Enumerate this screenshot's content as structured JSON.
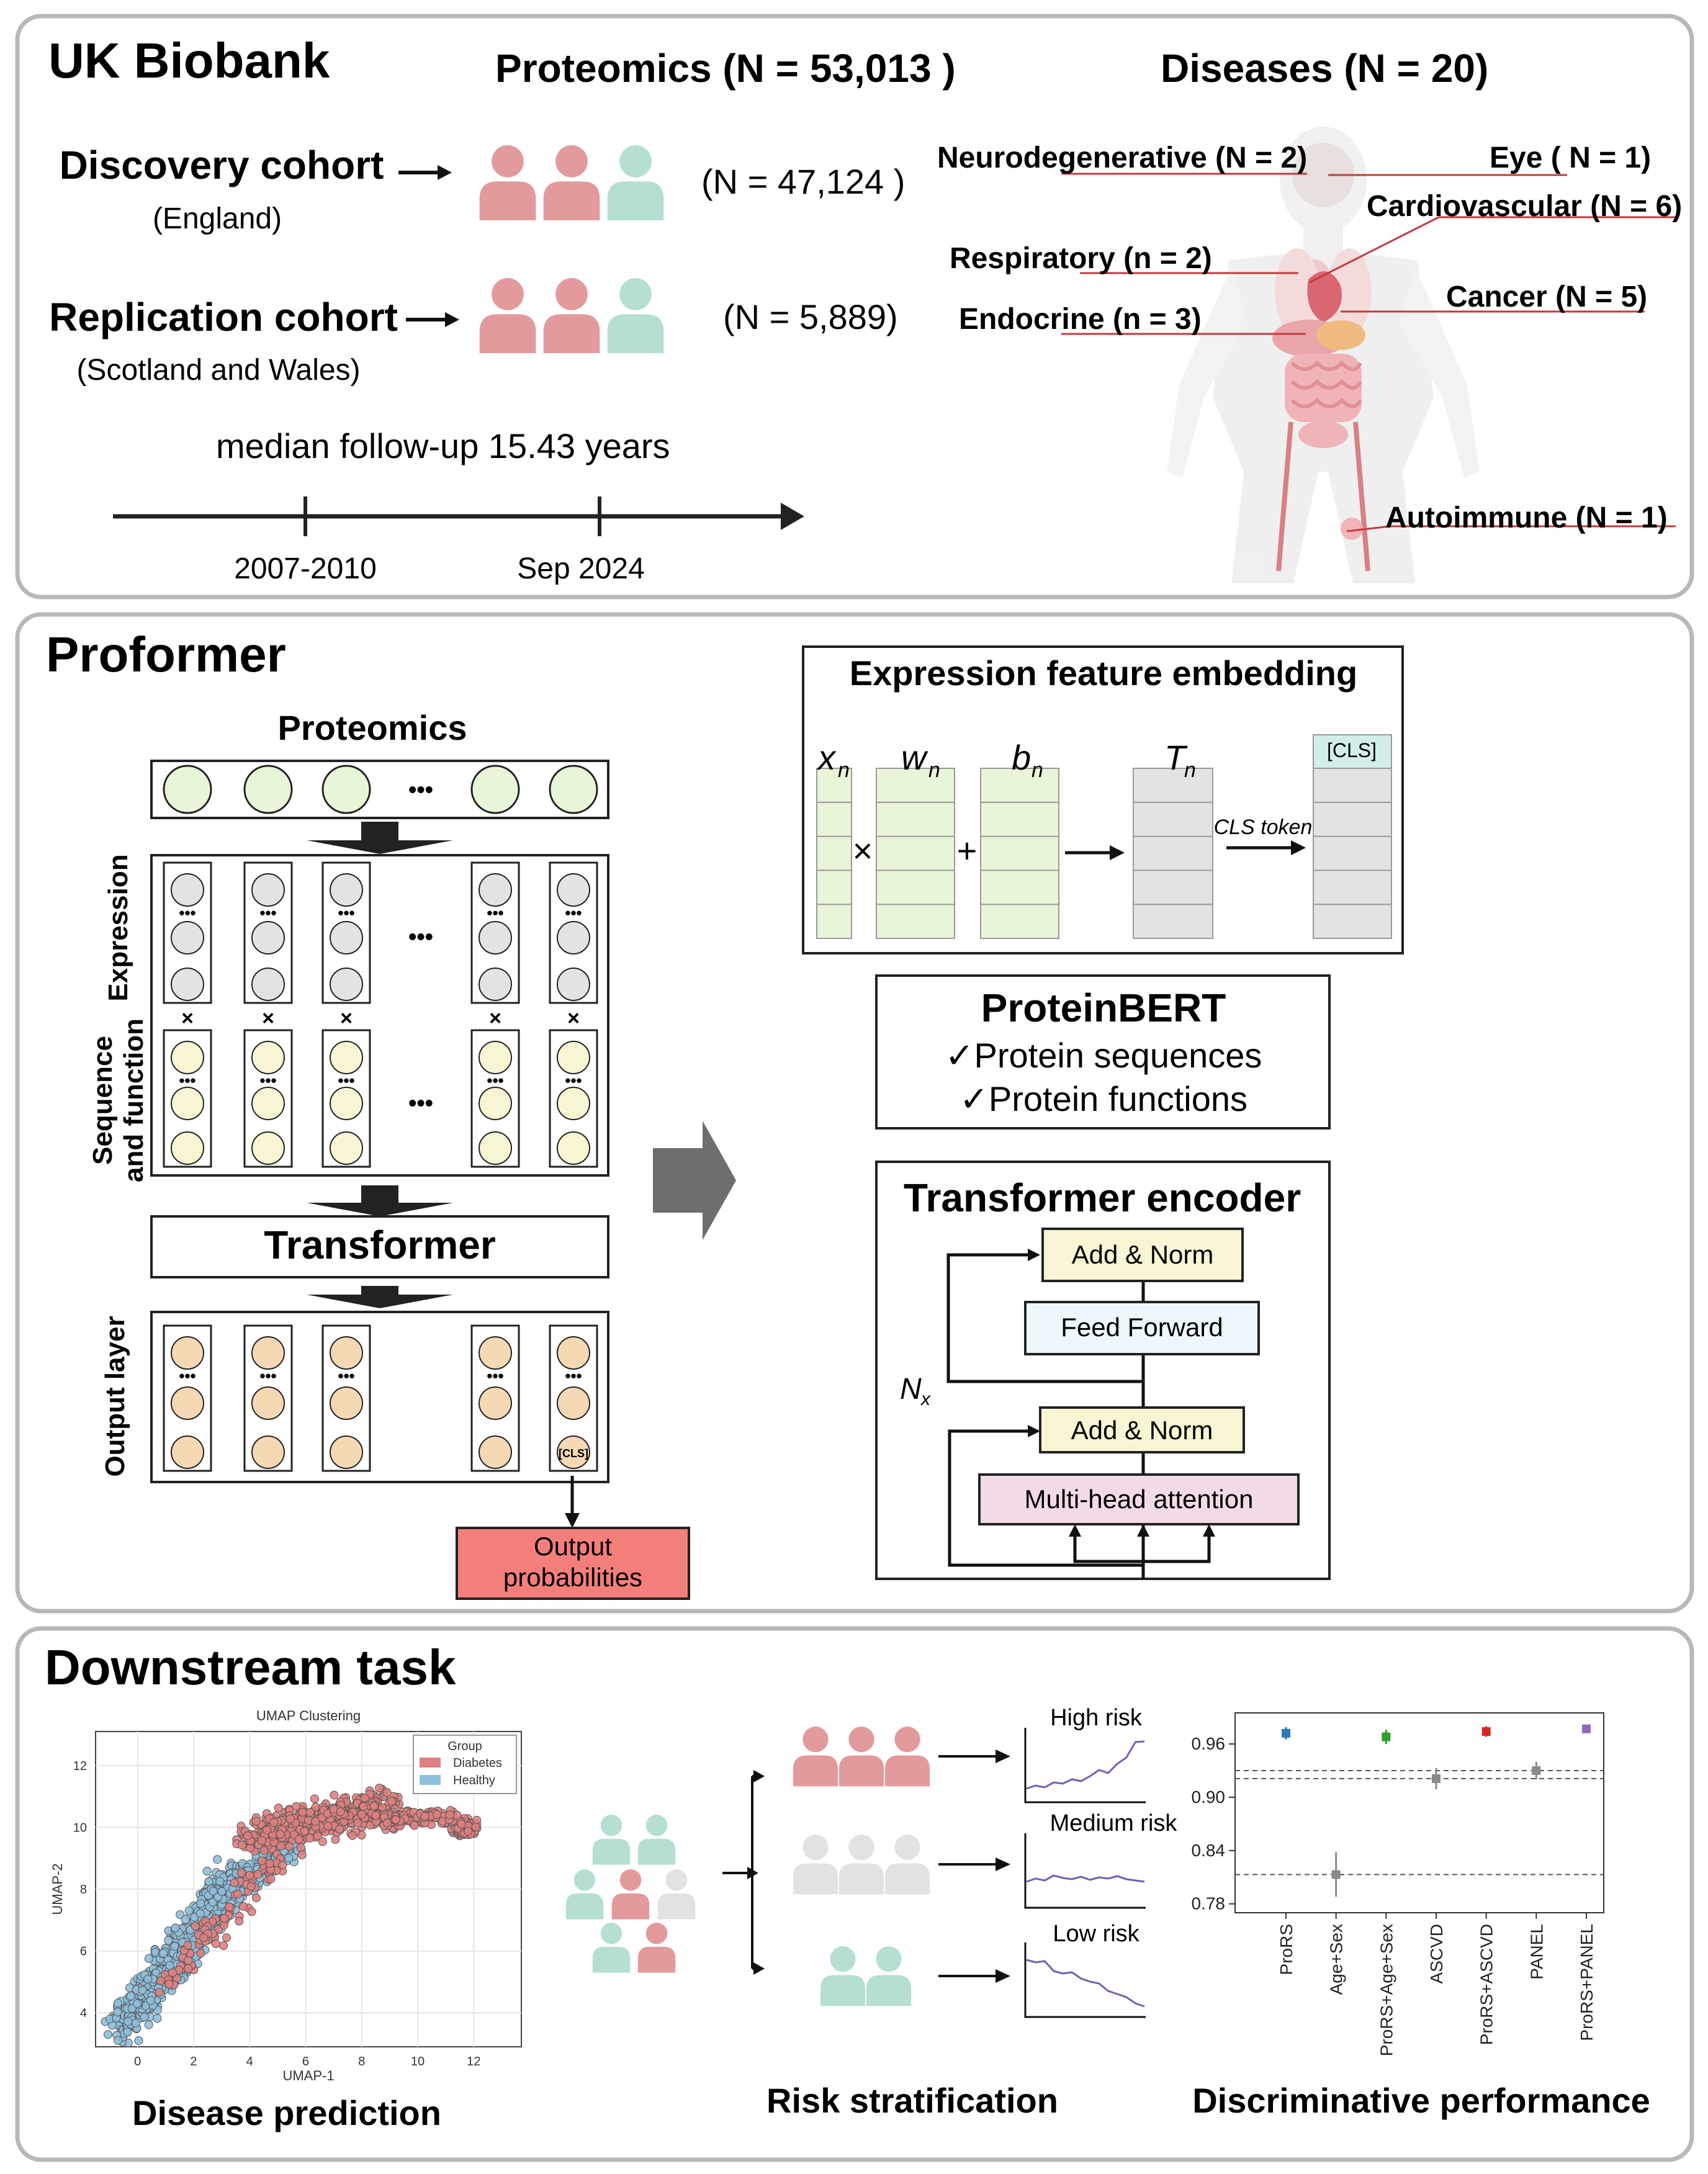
{
  "colors": {
    "person_pink": "#e39a9c",
    "person_teal": "#b5dfd3",
    "person_grey": "#e2e2e2",
    "green_fill": "#e8f5d8",
    "grey_fill": "#e3e3e3",
    "yellow_fill": "#f7f5d3",
    "orange_fill": "#f5d8b4",
    "output_red": "#f47f7a",
    "attention_pink": "#f2dbe6",
    "feedforward_blue": "#eef8fc",
    "cls_teal": "#d3eeea",
    "panel_border": "#b8b8b8",
    "line_purple": "#6a64b2",
    "diabetes_red": "#df7f7f",
    "healthy_blue": "#8fbfdc"
  },
  "biobank": {
    "title": "UK Biobank",
    "proteomics": "Proteomics  (N =  53,013 )",
    "diseases": "Diseases (N = 20)",
    "discovery": {
      "label": "Discovery cohort",
      "region": "(England)",
      "n": "(N = 47,124 )",
      "people": [
        "pink",
        "pink",
        "teal"
      ]
    },
    "replication": {
      "label": "Replication cohort",
      "region": "(Scotland and Wales)",
      "n": "(N = 5,889)",
      "people": [
        "pink",
        "pink",
        "teal"
      ]
    },
    "followup": "median follow-up  15.43 years",
    "timeline": {
      "start": "2007-2010",
      "end": "Sep 2024"
    },
    "disease_labels": [
      {
        "text": "Neurodegenerative (N = 2)"
      },
      {
        "text": "Eye ( N = 1)"
      },
      {
        "text": "Cardiovascular (N = 6)"
      },
      {
        "text": "Respiratory (n = 2)"
      },
      {
        "text": "Cancer (N = 5)"
      },
      {
        "text": "Endocrine (n = 3)"
      },
      {
        "text": "Autoimmune (N = 1)"
      }
    ]
  },
  "proformer": {
    "title": "Proformer",
    "proteomics_label": "Proteomics",
    "ellipsis": "•••",
    "vdots": "•••",
    "times": "×",
    "expression_label": "Expression",
    "sequence_label_1": "Sequence",
    "sequence_label_2": "and function",
    "transformer_label": "Transformer",
    "output_layer_label": "Output layer",
    "cls_small": "[CLS]",
    "output_prob_1": "Output",
    "output_prob_2": "probabilities",
    "embedding": {
      "title": "Expression feature embedding",
      "x": "x",
      "x_sub": "n",
      "w": "w",
      "w_sub": "n",
      "b": "b",
      "b_sub": "n",
      "t": "T",
      "t_sub": "n",
      "op_times": "×",
      "op_plus": "+",
      "cls_token": "CLS token",
      "cls": "[CLS]"
    },
    "proteinbert": {
      "title": "ProteinBERT",
      "item1": "✓Protein sequences",
      "item2": "✓Protein functions"
    },
    "encoder": {
      "title": "Transformer encoder",
      "add_norm_top": "Add & Norm",
      "feed_forward": "Feed Forward",
      "add_norm_bottom": "Add & Norm",
      "attention": "Multi-head attention",
      "nx": "N",
      "nx_sub": "x"
    }
  },
  "downstream": {
    "title": "Downstream task",
    "umap": {
      "title": "UMAP Clustering",
      "xlabel": "UMAP-1",
      "ylabel": "UMAP-2",
      "xticks": [
        "0",
        "2",
        "4",
        "6",
        "8",
        "10",
        "12"
      ],
      "yticks": [
        "4",
        "6",
        "8",
        "10",
        "12"
      ],
      "legend_title": "Group",
      "legend_items": [
        "Diabetes",
        "Healthy"
      ],
      "caption": "Disease prediction"
    },
    "risk": {
      "caption": "Risk stratification",
      "levels": [
        {
          "label": "High risk",
          "people": [
            "pink",
            "pink",
            "pink"
          ]
        },
        {
          "label": "Medium risk",
          "people": [
            "grey",
            "grey",
            "grey"
          ]
        },
        {
          "label": "Low risk",
          "people": [
            "teal",
            "teal"
          ]
        }
      ]
    },
    "caption_discriminative": "Discriminative performance"
  },
  "chart_data": {
    "type": "scatter",
    "title": "",
    "xlabel": "",
    "ylabel": "",
    "categories": [
      "ProRS",
      "Age+Sex",
      "ProRS+Age+Sex",
      "ASCVD",
      "ProRS+ASCVD",
      "PANEL",
      "ProRS+PANEL"
    ],
    "values": [
      0.972,
      0.813,
      0.968,
      0.921,
      0.974,
      0.93,
      0.977
    ],
    "errors": [
      0.007,
      0.025,
      0.008,
      0.012,
      0.006,
      0.01,
      0.004
    ],
    "point_colors": [
      "#2c7bb6",
      "#8a8a8a",
      "#2ca02c",
      "#8a8a8a",
      "#d62728",
      "#8a8a8a",
      "#9467bd"
    ],
    "yticks": [
      "0.96",
      "0.90",
      "0.84",
      "0.78"
    ],
    "ylim": [
      0.77,
      0.995
    ],
    "reference_lines": [
      0.921,
      0.93,
      0.813
    ]
  }
}
